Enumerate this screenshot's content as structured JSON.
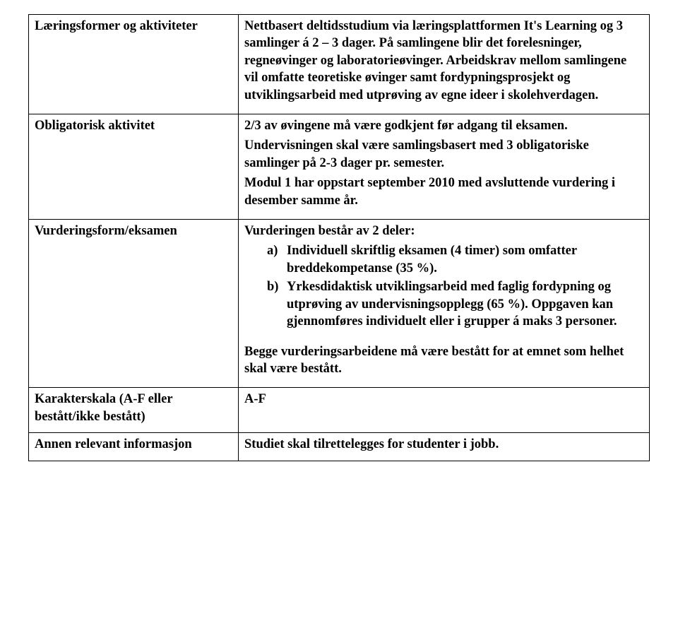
{
  "rows": {
    "learning": {
      "label": "Læringsformer og aktiviteter",
      "text": "Nettbasert deltidsstudium via læringsplattformen It's Learning og 3 samlinger á 2 – 3 dager. På samlingene blir det forelesninger, regneøvinger og laboratorieøvinger. Arbeidskrav mellom samlingene vil omfatte teoretiske øvinger samt fordypningsprosjekt og utviklingsarbeid med utprøving av egne ideer i skolehverdagen."
    },
    "mandatory": {
      "label": "Obligatorisk aktivitet",
      "p1": "2/3 av øvingene må være godkjent før adgang til eksamen.",
      "p2": "Undervisningen skal være samlingsbasert med 3 obligatoriske samlinger på 2-3 dager pr. semester.",
      "p3": "Modul 1 har oppstart september 2010 med avsluttende vurdering i desember samme år."
    },
    "assessment": {
      "label": "Vurderingsform/eksamen",
      "intro": "Vurderingen består av 2 deler:",
      "items": [
        {
          "marker": "a)",
          "text": "Individuell skriftlig eksamen (4 timer) som omfatter breddekompetanse (35 %)."
        },
        {
          "marker": "b)",
          "text": "Yrkesdidaktisk utviklingsarbeid med faglig fordypning og utprøving av undervisningsopplegg (65 %). Oppgaven kan gjennomføres individuelt eller i grupper á maks 3 personer."
        }
      ],
      "closing": "Begge vurderingsarbeidene må være bestått for at emnet som helhet skal være bestått."
    },
    "scale": {
      "label": "Karakterskala (A-F eller bestått/ikke bestått)",
      "value": "A-F"
    },
    "other": {
      "label": "Annen relevant informasjon",
      "value": "Studiet skal tilrettelegges for studenter i jobb."
    }
  }
}
